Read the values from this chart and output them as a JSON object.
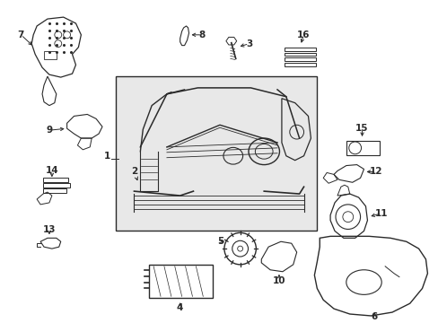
{
  "bg_color": "#ffffff",
  "line_color": "#2a2a2a",
  "box_bg": "#e8e8e8",
  "fig_width": 4.89,
  "fig_height": 3.6,
  "dpi": 100
}
